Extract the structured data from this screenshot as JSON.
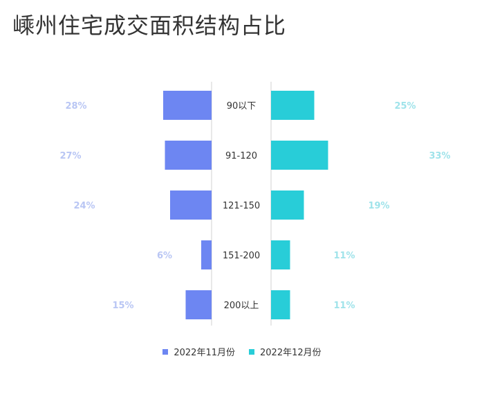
{
  "title": "嵊州住宅成交面积结构占比",
  "colors": {
    "nov": "#6d86f2",
    "dec": "#28cdd8",
    "nov_label": "#b9c6f4",
    "dec_label": "#9fe3ea",
    "axis": "#d0d0d0"
  },
  "chart_data": {
    "type": "bar",
    "orientation": "horizontal-butterfly",
    "categories": [
      "90以下",
      "91-120",
      "121-150",
      "151-200",
      "200以上"
    ],
    "series": [
      {
        "name": "2022年11月份",
        "values": [
          28,
          27,
          24,
          6,
          15
        ],
        "labels": [
          "28%",
          "27%",
          "24%",
          "6%",
          "15%"
        ]
      },
      {
        "name": "2022年12月份",
        "values": [
          25,
          33,
          19,
          11,
          11
        ],
        "labels": [
          "25%",
          "33%",
          "19%",
          "11%",
          "11%"
        ]
      }
    ],
    "xlabel": "",
    "ylabel": "",
    "legend": "bottom-center",
    "grid": false
  }
}
